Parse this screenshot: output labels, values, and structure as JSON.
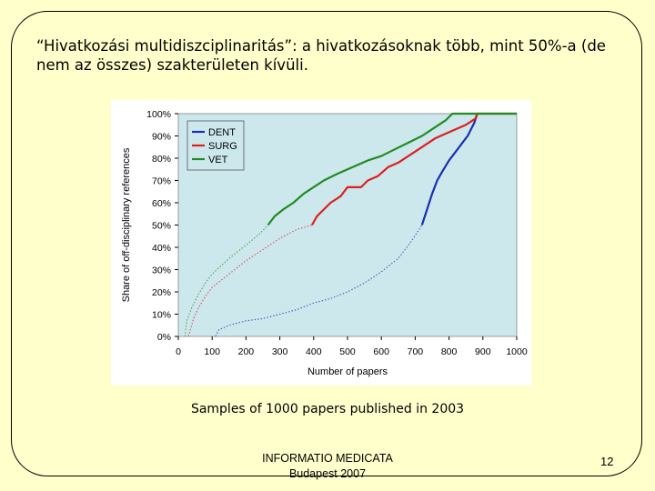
{
  "slide": {
    "title": "“Hivatkozási multidiszciplinaritás”: a hivatkozásoknak több, mint 50%-a (de nem az összes) szakterületen kívüli.",
    "caption": "Samples of 1000 papers published in 2003",
    "footer_line1": "INFORMATIO MEDICATA",
    "footer_line2": "Budapest 2007",
    "page_number": "12"
  },
  "chart_data": {
    "type": "line",
    "xlabel": "Number of papers",
    "ylabel": "Share of off-disciplinary references",
    "xlim": [
      0,
      1000
    ],
    "ylim": [
      0,
      100
    ],
    "x_ticks": [
      "0",
      "100",
      "200",
      "300",
      "400",
      "500",
      "600",
      "700",
      "800",
      "900",
      "1000"
    ],
    "y_ticks": [
      "0%",
      "10%",
      "20%",
      "30%",
      "40%",
      "50%",
      "60%",
      "70%",
      "80%",
      "90%",
      "100%"
    ],
    "plot_background": "#cce8ec",
    "legend_position": "top-left",
    "series": [
      {
        "name": "DENT",
        "color": "#1a2fb0",
        "below_half_points": [
          [
            110,
            0
          ],
          [
            120,
            3
          ],
          [
            150,
            5
          ],
          [
            200,
            7
          ],
          [
            250,
            8
          ],
          [
            300,
            10
          ],
          [
            350,
            12
          ],
          [
            400,
            15
          ],
          [
            450,
            17
          ],
          [
            500,
            20
          ],
          [
            550,
            24
          ],
          [
            600,
            29
          ],
          [
            650,
            35
          ],
          [
            690,
            43
          ],
          [
            720,
            50
          ]
        ],
        "above_half_points": [
          [
            720,
            50
          ],
          [
            735,
            57
          ],
          [
            750,
            64
          ],
          [
            765,
            70
          ],
          [
            780,
            74
          ],
          [
            800,
            79
          ],
          [
            820,
            83
          ],
          [
            840,
            87
          ],
          [
            855,
            90
          ],
          [
            865,
            93
          ],
          [
            875,
            96
          ],
          [
            883,
            100
          ]
        ]
      },
      {
        "name": "SURG",
        "color": "#dd1f1f",
        "below_half_points": [
          [
            30,
            0
          ],
          [
            45,
            8
          ],
          [
            60,
            13
          ],
          [
            80,
            18
          ],
          [
            100,
            22
          ],
          [
            150,
            28
          ],
          [
            200,
            34
          ],
          [
            250,
            39
          ],
          [
            300,
            44
          ],
          [
            350,
            48
          ],
          [
            395,
            50
          ]
        ],
        "above_half_points": [
          [
            395,
            50
          ],
          [
            410,
            54
          ],
          [
            430,
            57
          ],
          [
            450,
            60
          ],
          [
            480,
            63
          ],
          [
            500,
            67
          ],
          [
            540,
            67
          ],
          [
            560,
            70
          ],
          [
            590,
            72
          ],
          [
            620,
            76
          ],
          [
            650,
            78
          ],
          [
            680,
            81
          ],
          [
            700,
            83
          ],
          [
            730,
            86
          ],
          [
            760,
            89
          ],
          [
            790,
            91
          ],
          [
            820,
            93
          ],
          [
            850,
            95
          ],
          [
            880,
            98
          ],
          [
            883,
            100
          ],
          [
            1000,
            100
          ]
        ]
      },
      {
        "name": "VET",
        "color": "#228b22",
        "below_half_points": [
          [
            20,
            0
          ],
          [
            25,
            7
          ],
          [
            40,
            13
          ],
          [
            60,
            19
          ],
          [
            80,
            24
          ],
          [
            100,
            28
          ],
          [
            150,
            35
          ],
          [
            200,
            41
          ],
          [
            240,
            46
          ],
          [
            265,
            50
          ]
        ],
        "above_half_points": [
          [
            265,
            50
          ],
          [
            285,
            54
          ],
          [
            310,
            57
          ],
          [
            340,
            60
          ],
          [
            370,
            64
          ],
          [
            400,
            67
          ],
          [
            430,
            70
          ],
          [
            470,
            73
          ],
          [
            500,
            75
          ],
          [
            530,
            77
          ],
          [
            560,
            79
          ],
          [
            600,
            81
          ],
          [
            640,
            84
          ],
          [
            680,
            87
          ],
          [
            720,
            90
          ],
          [
            760,
            94
          ],
          [
            790,
            97
          ],
          [
            810,
            100
          ],
          [
            1000,
            100
          ]
        ]
      }
    ]
  }
}
